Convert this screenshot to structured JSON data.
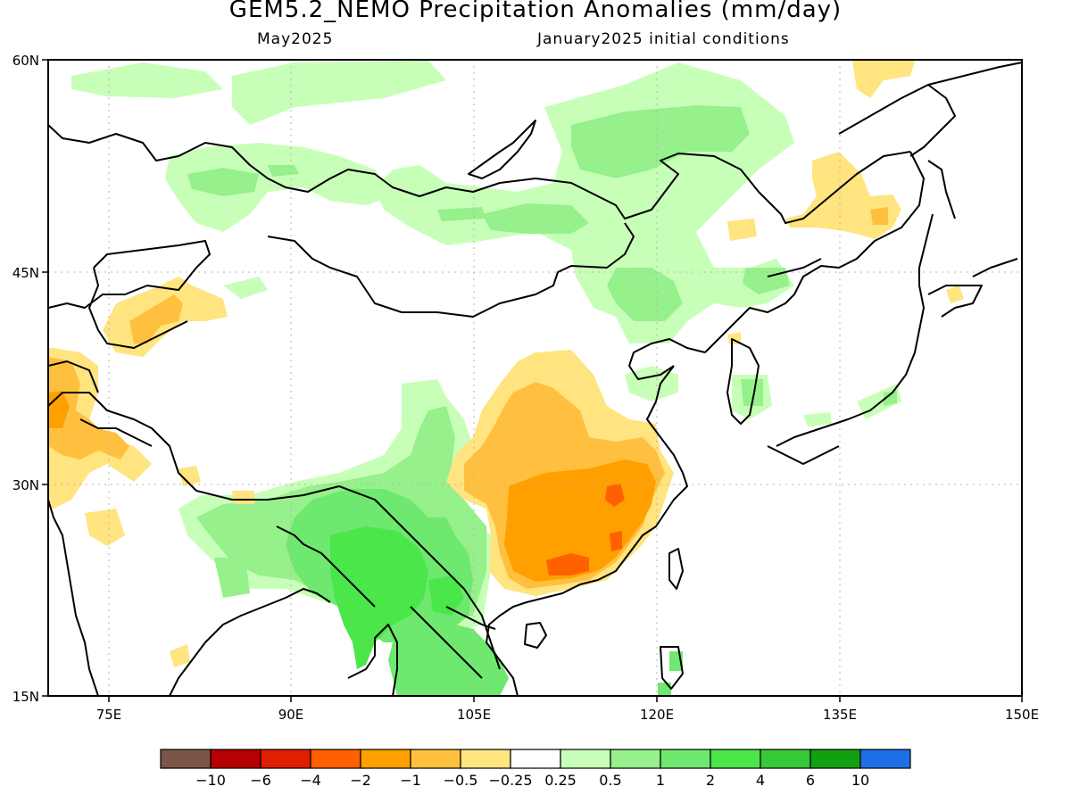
{
  "title": "GEM5.2_NEMO Precipitation Anomalies (mm/day)",
  "subtitle_left": "May2025",
  "subtitle_right": "January2025 initial conditions",
  "axes": {
    "lat_ticks": [
      "60N",
      "45N",
      "30N",
      "15N"
    ],
    "lon_ticks": [
      "75E",
      "90E",
      "105E",
      "120E",
      "135E",
      "150E"
    ],
    "lat_range": [
      15,
      60
    ],
    "lon_range": [
      70,
      150
    ],
    "grid": "dotted"
  },
  "colors": {
    "brown": "#7a5548",
    "dark_red": "#b70000",
    "red": "#e01e00",
    "orange_red": "#ff6000",
    "orange": "#ffa000",
    "light_orange": "#ffc040",
    "yellow": "#ffe480",
    "white": "#ffffff",
    "pale_green": "#c8ffb8",
    "light_green": "#96f08c",
    "green": "#6ee86e",
    "bright_green": "#4ae64a",
    "mid_green": "#36c836",
    "dark_green": "#10a010",
    "blue": "#1e6ee6"
  },
  "colorbar": {
    "colors": [
      "#7a5548",
      "#b70000",
      "#e01e00",
      "#ff6000",
      "#ffa000",
      "#ffc040",
      "#ffe480",
      "#ffffff",
      "#c8ffb8",
      "#96f08c",
      "#6ee86e",
      "#4ae64a",
      "#36c836",
      "#10a010",
      "#1e6ee6"
    ],
    "labels": [
      "−10",
      "−6",
      "−4",
      "−2",
      "−1",
      "−0.5",
      "−0.25",
      "0.25",
      "0.5",
      "1",
      "2",
      "4",
      "6",
      "10"
    ]
  }
}
